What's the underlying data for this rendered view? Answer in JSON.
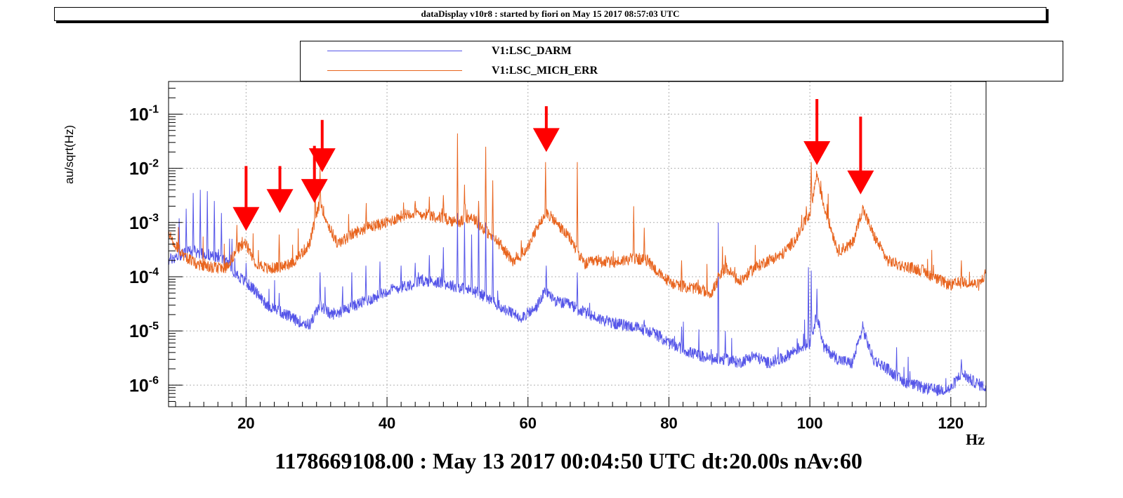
{
  "header": {
    "title": "dataDisplay v10r8 : started by fiori on May 15 2017 08:57:03 UTC"
  },
  "footer": {
    "text": "1178669108.00 : May 13 2017 00:04:50 UTC dt:20.00s nAv:60"
  },
  "colors": {
    "darm": "#5555e8",
    "mich": "#e8641e",
    "arrow": "#ff0000",
    "grid": "#b0b0b0"
  },
  "chart_data": {
    "type": "line",
    "xlabel": "Hz",
    "ylabel": "au/sqrt(Hz)",
    "xlim": [
      9,
      125
    ],
    "ylim": [
      4e-07,
      0.4
    ],
    "ylog": true,
    "grid": true,
    "legend_position": "top",
    "x_ticks": [
      {
        "value": 20,
        "label": "20"
      },
      {
        "value": 40,
        "label": "40"
      },
      {
        "value": 60,
        "label": "60"
      },
      {
        "value": 80,
        "label": "80"
      },
      {
        "value": 100,
        "label": "100"
      },
      {
        "value": 120,
        "label": "120"
      }
    ],
    "y_ticks": [
      {
        "value": 0.1,
        "base": "10",
        "exp": "-1"
      },
      {
        "value": 0.01,
        "base": "10",
        "exp": "-2"
      },
      {
        "value": 0.001,
        "base": "10",
        "exp": "-3"
      },
      {
        "value": 0.0001,
        "base": "10",
        "exp": "-4"
      },
      {
        "value": 1e-05,
        "base": "10",
        "exp": "-5"
      },
      {
        "value": 1e-06,
        "base": "10",
        "exp": "-6"
      }
    ],
    "series": [
      {
        "name": "V1:LSC_DARM",
        "color": "#5555e8",
        "baseline": [
          [
            9,
            0.0002
          ],
          [
            12,
            0.0003
          ],
          [
            15,
            0.00025
          ],
          [
            17,
            0.0002
          ],
          [
            19,
            0.0001
          ],
          [
            21,
            6e-05
          ],
          [
            23,
            3e-05
          ],
          [
            25,
            2.2e-05
          ],
          [
            27,
            1.6e-05
          ],
          [
            29,
            1.3e-05
          ],
          [
            30.5,
            3e-05
          ],
          [
            32,
            2e-05
          ],
          [
            34,
            2.4e-05
          ],
          [
            36,
            3.2e-05
          ],
          [
            38,
            4e-05
          ],
          [
            40,
            5.5e-05
          ],
          [
            43,
            7e-05
          ],
          [
            45,
            8.5e-05
          ],
          [
            47,
            8e-05
          ],
          [
            49,
            7e-05
          ],
          [
            51,
            6e-05
          ],
          [
            53,
            5e-05
          ],
          [
            55,
            3.5e-05
          ],
          [
            57,
            2.3e-05
          ],
          [
            59,
            1.8e-05
          ],
          [
            61,
            2.5e-05
          ],
          [
            62.5,
            5.5e-05
          ],
          [
            64,
            3.5e-05
          ],
          [
            66,
            3e-05
          ],
          [
            68,
            2.2e-05
          ],
          [
            70,
            1.7e-05
          ],
          [
            72,
            1.4e-05
          ],
          [
            75,
            1.2e-05
          ],
          [
            78,
            9e-06
          ],
          [
            80,
            6e-06
          ],
          [
            83,
            4e-06
          ],
          [
            86,
            3e-06
          ],
          [
            88,
            3e-06
          ],
          [
            90,
            2.6e-06
          ],
          [
            92,
            3.5e-06
          ],
          [
            94,
            2.6e-06
          ],
          [
            96,
            3e-06
          ],
          [
            98,
            4.5e-06
          ],
          [
            100,
            6e-06
          ],
          [
            101,
            2e-05
          ],
          [
            102,
            5e-06
          ],
          [
            104,
            3e-06
          ],
          [
            106,
            2.5e-06
          ],
          [
            107.5,
            1.1e-05
          ],
          [
            109,
            3e-06
          ],
          [
            111,
            2e-06
          ],
          [
            113,
            1.2e-06
          ],
          [
            116,
            9e-07
          ],
          [
            118,
            8e-07
          ],
          [
            120,
            8.5e-07
          ],
          [
            121.5,
            1.7e-06
          ],
          [
            123,
            1.2e-06
          ],
          [
            125,
            9e-07
          ]
        ],
        "peaks": [
          [
            10.5,
            0.0012
          ],
          [
            11.5,
            0.0018
          ],
          [
            12.5,
            0.0035
          ],
          [
            13.5,
            0.004
          ],
          [
            14.5,
            0.0038
          ],
          [
            15.5,
            0.0025
          ],
          [
            16.5,
            0.0015
          ],
          [
            18,
            0.0005
          ],
          [
            20,
            0.00018
          ],
          [
            24.7,
            5e-05
          ],
          [
            30.5,
            0.00012
          ],
          [
            35,
            0.00012
          ],
          [
            37,
            0.00016
          ],
          [
            39,
            0.00019
          ],
          [
            42,
            0.00016
          ],
          [
            44,
            0.00018
          ],
          [
            46,
            0.00025
          ],
          [
            48,
            0.00035
          ],
          [
            50,
            0.0015
          ],
          [
            51,
            0.001
          ],
          [
            52,
            0.0006
          ],
          [
            53,
            0.0025
          ],
          [
            54,
            0.001
          ],
          [
            55,
            0.0006
          ],
          [
            62.6,
            0.00016
          ],
          [
            67,
            0.00012
          ],
          [
            76.5,
            1.6e-05
          ],
          [
            81.8,
            1.2e-05
          ],
          [
            87,
            0.001
          ],
          [
            88,
            1e-05
          ],
          [
            99.8,
            0.00015
          ],
          [
            100.2,
            0.00013
          ],
          [
            101,
            6e-05
          ],
          [
            107.5,
            1.5e-05
          ],
          [
            112.3,
            5e-06
          ],
          [
            121.5,
            3e-06
          ]
        ]
      },
      {
        "name": "V1:LSC_MICH_ERR",
        "color": "#e8641e",
        "baseline": [
          [
            9,
            0.0006
          ],
          [
            11,
            0.00025
          ],
          [
            13,
            0.00017
          ],
          [
            15,
            0.00015
          ],
          [
            17,
            0.00014
          ],
          [
            19,
            0.00035
          ],
          [
            20,
            0.0004
          ],
          [
            21,
            0.0002
          ],
          [
            23,
            0.00014
          ],
          [
            25,
            0.00015
          ],
          [
            27,
            0.0002
          ],
          [
            29,
            0.0004
          ],
          [
            30.5,
            0.0025
          ],
          [
            31.5,
            0.001
          ],
          [
            33,
            0.0004
          ],
          [
            35,
            0.0006
          ],
          [
            37,
            0.0008
          ],
          [
            40,
            0.001
          ],
          [
            43,
            0.0015
          ],
          [
            46,
            0.0014
          ],
          [
            48,
            0.0012
          ],
          [
            50,
            0.001
          ],
          [
            52,
            0.0013
          ],
          [
            54,
            0.0007
          ],
          [
            56,
            0.0004
          ],
          [
            58,
            0.00018
          ],
          [
            60,
            0.00035
          ],
          [
            62.5,
            0.0016
          ],
          [
            64,
            0.001
          ],
          [
            66,
            0.0005
          ],
          [
            68,
            0.00017
          ],
          [
            70,
            0.0002
          ],
          [
            72,
            0.00018
          ],
          [
            75,
            0.00022
          ],
          [
            77,
            0.0002
          ],
          [
            79,
            0.0001
          ],
          [
            81,
            7e-05
          ],
          [
            84,
            6e-05
          ],
          [
            86,
            5e-05
          ],
          [
            88,
            0.00015
          ],
          [
            90,
            8e-05
          ],
          [
            92,
            0.00014
          ],
          [
            94,
            0.0002
          ],
          [
            96,
            0.00025
          ],
          [
            98,
            0.0005
          ],
          [
            100,
            0.0015
          ],
          [
            101,
            0.008
          ],
          [
            102,
            0.002
          ],
          [
            104,
            0.0003
          ],
          [
            106,
            0.0004
          ],
          [
            107.5,
            0.0018
          ],
          [
            109,
            0.0006
          ],
          [
            111,
            0.0002
          ],
          [
            113,
            0.00016
          ],
          [
            116,
            0.00013
          ],
          [
            118,
            9e-05
          ],
          [
            120,
            7e-05
          ],
          [
            122,
            8e-05
          ],
          [
            124,
            7e-05
          ],
          [
            125,
            0.00012
          ]
        ],
        "peaks": [
          [
            18.7,
            0.0009
          ],
          [
            24.7,
            0.0006
          ],
          [
            29.8,
            0.008
          ],
          [
            30.5,
            0.01
          ],
          [
            44,
            0.0025
          ],
          [
            46,
            0.003
          ],
          [
            48,
            0.0032
          ],
          [
            50,
            0.044
          ],
          [
            51,
            0.005
          ],
          [
            53,
            0.0025
          ],
          [
            54,
            0.025
          ],
          [
            55,
            0.006
          ],
          [
            62.5,
            0.013
          ],
          [
            67,
            0.013
          ],
          [
            75,
            0.002
          ],
          [
            76.5,
            0.0008
          ],
          [
            81.8,
            0.0002
          ],
          [
            87,
            0.00012
          ],
          [
            88,
            0.00025
          ],
          [
            99.5,
            0.002
          ],
          [
            100.2,
            0.013
          ],
          [
            107.5,
            0.002
          ],
          [
            121.5,
            0.0002
          ]
        ]
      }
    ],
    "annotations": [
      {
        "type": "arrow",
        "x": 20.0,
        "y_top": 0.011,
        "y_tip": 0.0007
      },
      {
        "type": "arrow",
        "x": 24.8,
        "y_top": 0.011,
        "y_tip": 0.0015
      },
      {
        "type": "arrow",
        "x": 29.7,
        "y_top": 0.026,
        "y_tip": 0.0023
      },
      {
        "type": "arrow",
        "x": 30.8,
        "y_top": 0.078,
        "y_tip": 0.0085
      },
      {
        "type": "arrow",
        "x": 62.6,
        "y_top": 0.14,
        "y_tip": 0.02
      },
      {
        "type": "arrow",
        "x": 101.0,
        "y_top": 0.19,
        "y_tip": 0.0115
      },
      {
        "type": "arrow",
        "x": 107.2,
        "y_top": 0.09,
        "y_tip": 0.0033
      }
    ]
  }
}
